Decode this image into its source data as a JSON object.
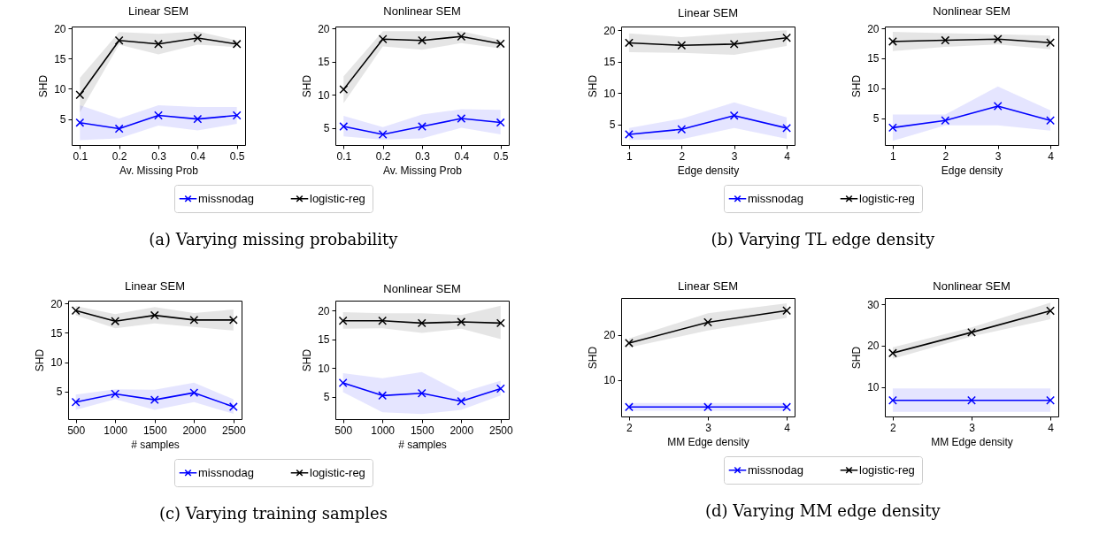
{
  "chart_data": [
    {
      "type": "line",
      "title": "Linear SEM",
      "xlabel": "Av. Missing Prob",
      "ylabel": "SHD",
      "x": [
        0.1,
        0.2,
        0.3,
        0.4,
        0.5
      ],
      "xlim": [
        0.079,
        0.521
      ],
      "xticks": [
        0.1,
        0.2,
        0.3,
        0.4,
        0.5
      ],
      "ylim": [
        0.7,
        20.3
      ],
      "yticks": [
        5,
        10,
        15,
        20
      ],
      "marker": "cross",
      "legend": "bottom",
      "annotations": [
        "(a) Varying missing probability"
      ],
      "series": [
        {
          "name": "missnodag",
          "color": "#0000ff",
          "values": [
            4.4,
            3.4,
            5.6,
            5.0,
            5.6
          ],
          "lower": [
            1.5,
            1.8,
            3.9,
            3.1,
            4.2
          ],
          "upper": [
            7.3,
            5.1,
            7.3,
            7.0,
            7.0
          ]
        },
        {
          "name": "logistic-reg",
          "color": "#000000",
          "values": [
            9.0,
            18.0,
            17.4,
            18.4,
            17.4
          ],
          "lower": [
            6.1,
            17.3,
            15.7,
            17.3,
            16.9
          ],
          "upper": [
            11.8,
            19.4,
            19.1,
            19.5,
            18.0
          ]
        }
      ]
    },
    {
      "type": "line",
      "title": "Nonlinear SEM",
      "xlabel": "Av. Missing Prob",
      "ylabel": "SHD",
      "x": [
        0.1,
        0.2,
        0.3,
        0.4,
        0.5
      ],
      "xlim": [
        0.079,
        0.521
      ],
      "xticks": [
        0.1,
        0.2,
        0.3,
        0.4,
        0.5
      ],
      "ylim": [
        2.4,
        20.3
      ],
      "yticks": [
        5,
        10,
        15,
        20
      ],
      "marker": "cross",
      "legend": "bottom",
      "series": [
        {
          "name": "missnodag",
          "color": "#0000ff",
          "values": [
            5.2,
            4.0,
            5.2,
            6.4,
            5.8
          ],
          "lower": [
            3.7,
            3.2,
            3.4,
            5.0,
            4.0
          ],
          "upper": [
            6.8,
            5.1,
            7.0,
            7.8,
            7.7
          ]
        },
        {
          "name": "logistic-reg",
          "color": "#000000",
          "values": [
            10.8,
            18.4,
            18.2,
            18.8,
            17.7
          ],
          "lower": [
            8.7,
            17.3,
            16.8,
            17.8,
            17.0
          ],
          "upper": [
            12.8,
            19.6,
            19.6,
            19.6,
            18.3
          ]
        }
      ]
    },
    {
      "type": "line",
      "title": "Linear SEM",
      "xlabel": "Edge density",
      "ylabel": "SHD",
      "x": [
        1,
        2,
        3,
        4
      ],
      "xlim": [
        0.85,
        4.15
      ],
      "xticks": [
        1,
        2,
        3,
        4
      ],
      "ylim": [
        1.7,
        20.6
      ],
      "yticks": [
        5,
        10,
        15,
        20
      ],
      "marker": "cross",
      "legend": "bottom",
      "annotations": [
        "(b) Varying TL edge density"
      ],
      "series": [
        {
          "name": "missnodag",
          "color": "#0000ff",
          "values": [
            3.4,
            4.2,
            6.4,
            4.4
          ],
          "lower": [
            2.5,
            2.6,
            4.4,
            2.7
          ],
          "upper": [
            4.4,
            5.9,
            8.5,
            6.1
          ]
        },
        {
          "name": "logistic-reg",
          "color": "#000000",
          "values": [
            18.0,
            17.6,
            17.8,
            18.8
          ],
          "lower": [
            16.5,
            16.4,
            16.1,
            17.5
          ],
          "upper": [
            19.5,
            18.9,
            19.5,
            20.0
          ]
        }
      ]
    },
    {
      "type": "line",
      "title": "Nonlinear SEM",
      "xlabel": "Edge density",
      "ylabel": "SHD",
      "x": [
        1,
        2,
        3,
        4
      ],
      "xlim": [
        0.85,
        4.15
      ],
      "xticks": [
        1,
        2,
        3,
        4
      ],
      "ylim": [
        0.5,
        20.3
      ],
      "yticks": [
        5,
        10,
        15,
        20
      ],
      "marker": "cross",
      "legend": "bottom",
      "series": [
        {
          "name": "missnodag",
          "color": "#0000ff",
          "values": [
            3.4,
            4.6,
            7.0,
            4.6
          ],
          "lower": [
            1.2,
            3.8,
            3.8,
            2.9
          ],
          "upper": [
            5.6,
            5.6,
            10.3,
            6.3
          ]
        },
        {
          "name": "logistic-reg",
          "color": "#000000",
          "values": [
            17.8,
            18.0,
            18.2,
            17.6
          ],
          "lower": [
            16.2,
            16.9,
            17.3,
            16.5
          ],
          "upper": [
            19.4,
            19.2,
            19.0,
            18.8
          ]
        }
      ]
    },
    {
      "type": "line",
      "title": "Linear SEM",
      "xlabel": "# samples",
      "ylabel": "SHD",
      "x": [
        500,
        1000,
        1500,
        2000,
        2500
      ],
      "xlim": [
        403,
        2603
      ],
      "xticks": [
        500,
        1000,
        1500,
        2000,
        2500
      ],
      "ylim": [
        0.3,
        20.5
      ],
      "yticks": [
        5,
        10,
        15,
        20
      ],
      "marker": "cross",
      "legend": "bottom",
      "annotations": [
        "(c) Varying training samples"
      ],
      "series": [
        {
          "name": "missnodag",
          "color": "#0000ff",
          "values": [
            3.2,
            4.6,
            3.6,
            4.8,
            2.4
          ],
          "lower": [
            1.9,
            3.7,
            1.9,
            3.2,
            1.2
          ],
          "upper": [
            4.5,
            5.4,
            5.3,
            6.5,
            3.7
          ]
        },
        {
          "name": "logistic-reg",
          "color": "#000000",
          "values": [
            18.8,
            17.0,
            18.0,
            17.2,
            17.2
          ],
          "lower": [
            18.0,
            15.8,
            16.6,
            16.0,
            15.4
          ],
          "upper": [
            19.6,
            18.2,
            19.4,
            18.4,
            19.0
          ]
        }
      ]
    },
    {
      "type": "line",
      "title": "Nonlinear SEM",
      "xlabel": "# samples",
      "ylabel": "SHD",
      "x": [
        500,
        1000,
        1500,
        2000,
        2500
      ],
      "xlim": [
        403,
        2603
      ],
      "xticks": [
        500,
        1000,
        1500,
        2000,
        2500
      ],
      "ylim": [
        1.1,
        21.7
      ],
      "yticks": [
        5,
        10,
        15,
        20
      ],
      "marker": "cross",
      "legend": "bottom",
      "series": [
        {
          "name": "missnodag",
          "color": "#0000ff",
          "values": [
            7.4,
            5.2,
            5.6,
            4.2,
            6.4
          ],
          "lower": [
            5.8,
            2.3,
            2.0,
            2.7,
            5.2
          ],
          "upper": [
            9.1,
            8.2,
            9.3,
            5.7,
            7.8
          ]
        },
        {
          "name": "logistic-reg",
          "color": "#000000",
          "values": [
            18.2,
            18.2,
            17.8,
            18.0,
            17.8
          ],
          "lower": [
            16.8,
            16.9,
            16.1,
            16.8,
            15.0
          ],
          "upper": [
            19.7,
            19.5,
            19.5,
            19.2,
            20.8
          ]
        }
      ]
    },
    {
      "type": "line",
      "title": "Linear SEM",
      "xlabel": "MM Edge density",
      "ylabel": "SHD",
      "x": [
        2,
        3,
        4
      ],
      "xlim": [
        1.9,
        4.1
      ],
      "xticks": [
        2,
        3,
        4
      ],
      "ylim": [
        1.9,
        28.2
      ],
      "yticks": [
        10,
        20
      ],
      "marker": "cross",
      "legend": "bottom",
      "annotations": [
        "(d) Varying MM edge density"
      ],
      "series": [
        {
          "name": "missnodag",
          "color": "#0000ff",
          "values": [
            4.0,
            4.0,
            4.0
          ],
          "lower": [
            3.2,
            3.2,
            3.2
          ],
          "upper": [
            4.9,
            4.9,
            4.9
          ]
        },
        {
          "name": "logistic-reg",
          "color": "#000000",
          "values": [
            18.2,
            22.8,
            25.4
          ],
          "lower": [
            17.2,
            21.0,
            23.8
          ],
          "upper": [
            19.2,
            24.8,
            27.0
          ]
        }
      ]
    },
    {
      "type": "line",
      "title": "Nonlinear SEM",
      "xlabel": "MM Edge density",
      "ylabel": "SHD",
      "x": [
        2,
        3,
        4
      ],
      "xlim": [
        1.9,
        4.1
      ],
      "xticks": [
        2,
        3,
        4
      ],
      "ylim": [
        2.9,
        31.5
      ],
      "yticks": [
        10,
        20,
        30
      ],
      "marker": "cross",
      "legend": "bottom",
      "series": [
        {
          "name": "missnodag",
          "color": "#0000ff",
          "values": [
            6.8,
            6.8,
            6.8
          ],
          "lower": [
            4.0,
            4.0,
            4.0
          ],
          "upper": [
            9.7,
            9.7,
            9.7
          ]
        },
        {
          "name": "logistic-reg",
          "color": "#000000",
          "values": [
            18.2,
            23.2,
            28.4
          ],
          "lower": [
            16.8,
            22.2,
            26.4
          ],
          "upper": [
            19.6,
            24.4,
            30.4
          ]
        }
      ]
    }
  ]
}
